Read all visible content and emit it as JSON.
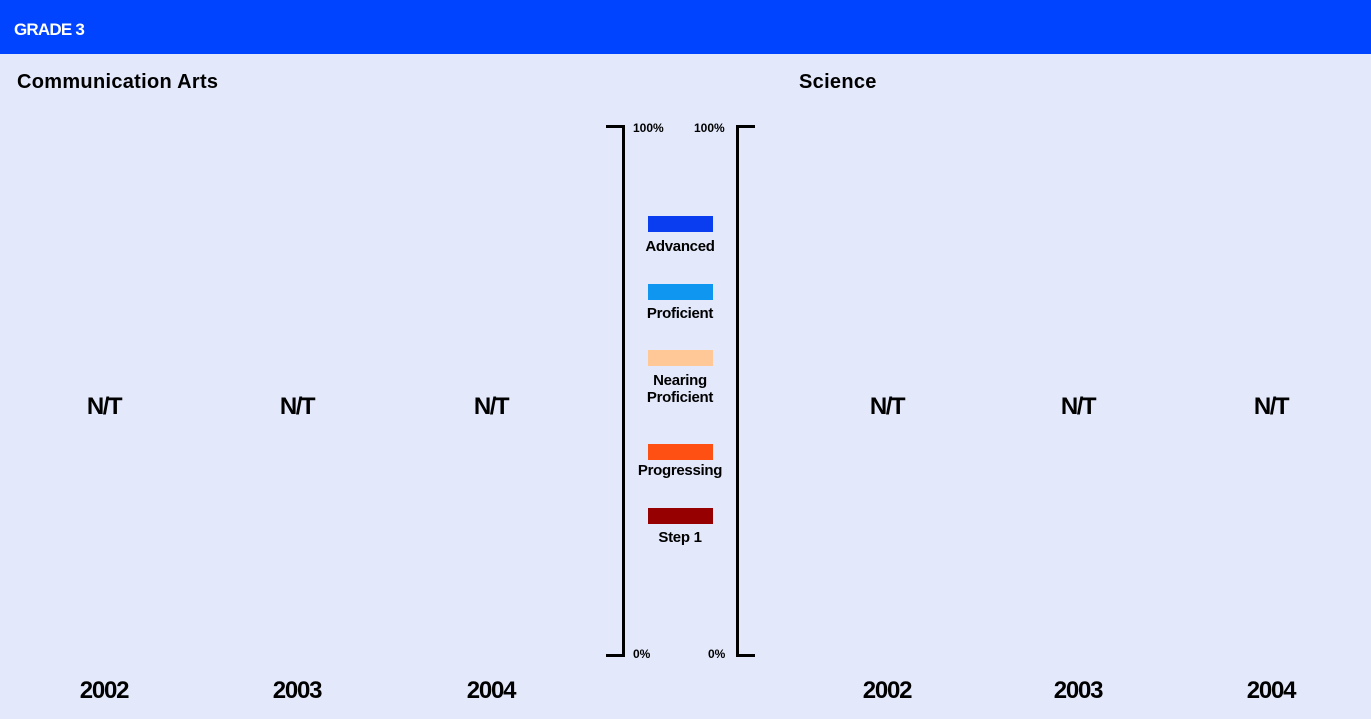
{
  "header": {
    "title": "GRADE 3"
  },
  "chart_data": [
    {
      "type": "bar",
      "title": "Communication Arts",
      "categories": [
        "2002",
        "2003",
        "2004"
      ],
      "value_labels": [
        "N/T",
        "N/T",
        "N/T"
      ],
      "ylim": [
        0,
        100
      ],
      "y_ticks": [
        "0%",
        "100%"
      ]
    },
    {
      "type": "bar",
      "title": "Science",
      "categories": [
        "2002",
        "2003",
        "2004"
      ],
      "value_labels": [
        "N/T",
        "N/T",
        "N/T"
      ],
      "ylim": [
        0,
        100
      ],
      "y_ticks": [
        "0%",
        "100%"
      ]
    }
  ],
  "legend": {
    "items": [
      {
        "label": "Advanced",
        "color": "#0a3cf0"
      },
      {
        "label": "Proficient",
        "color": "#0f96f0"
      },
      {
        "label": "Nearing\nProficient",
        "color": "#ffc896"
      },
      {
        "label": "Progressing",
        "color": "#ff5014"
      },
      {
        "label": "Step 1",
        "color": "#960000"
      }
    ]
  },
  "scale": {
    "left": {
      "top_label": "100%",
      "bottom_label": "0%"
    },
    "right": {
      "top_label": "100%",
      "bottom_label": "0%"
    }
  }
}
